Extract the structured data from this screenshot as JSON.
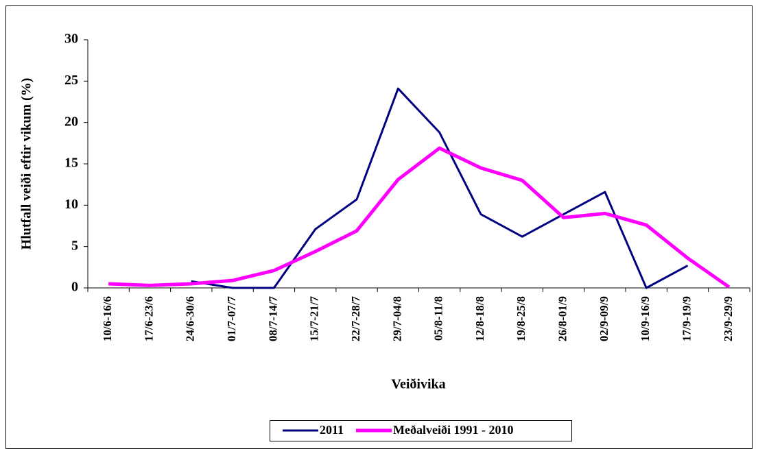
{
  "chart_data": {
    "type": "line",
    "y_label": "Hlutfall veiði eftir vikum (%)",
    "x_label": "Veiðivika",
    "categories": [
      "10/6-16/6",
      "17/6-23/6",
      "24/6-30/6",
      "01/7-07/7",
      "08/7-14/7",
      "15/7-21/7",
      "22/7-28/7",
      "29/7-04/8",
      "05/8-11/8",
      "12/8-18/8",
      "19/8-25/8",
      "26/8-01/9",
      "02/9-09/9",
      "10/9-16/9",
      "17/9-19/9",
      "23/9-29/9"
    ],
    "series": [
      {
        "name": "2011",
        "color": "#000080",
        "values": [
          null,
          null,
          0.8,
          0,
          0,
          7.1,
          10.7,
          24.1,
          18.8,
          8.9,
          6.2,
          8.9,
          11.6,
          0,
          2.7,
          null
        ]
      },
      {
        "name": "Meðalveiði 1991 - 2010",
        "color": "#ff00ff",
        "values": [
          0.5,
          0.3,
          0.5,
          0.9,
          2.1,
          4.4,
          6.9,
          13.1,
          16.9,
          14.5,
          13.0,
          8.5,
          9.0,
          7.6,
          3.6,
          0.1
        ]
      }
    ],
    "ylim": [
      0,
      30
    ],
    "yticks": [
      0,
      5,
      10,
      15,
      20,
      25,
      30
    ],
    "grid": false,
    "legend": "bottom"
  }
}
